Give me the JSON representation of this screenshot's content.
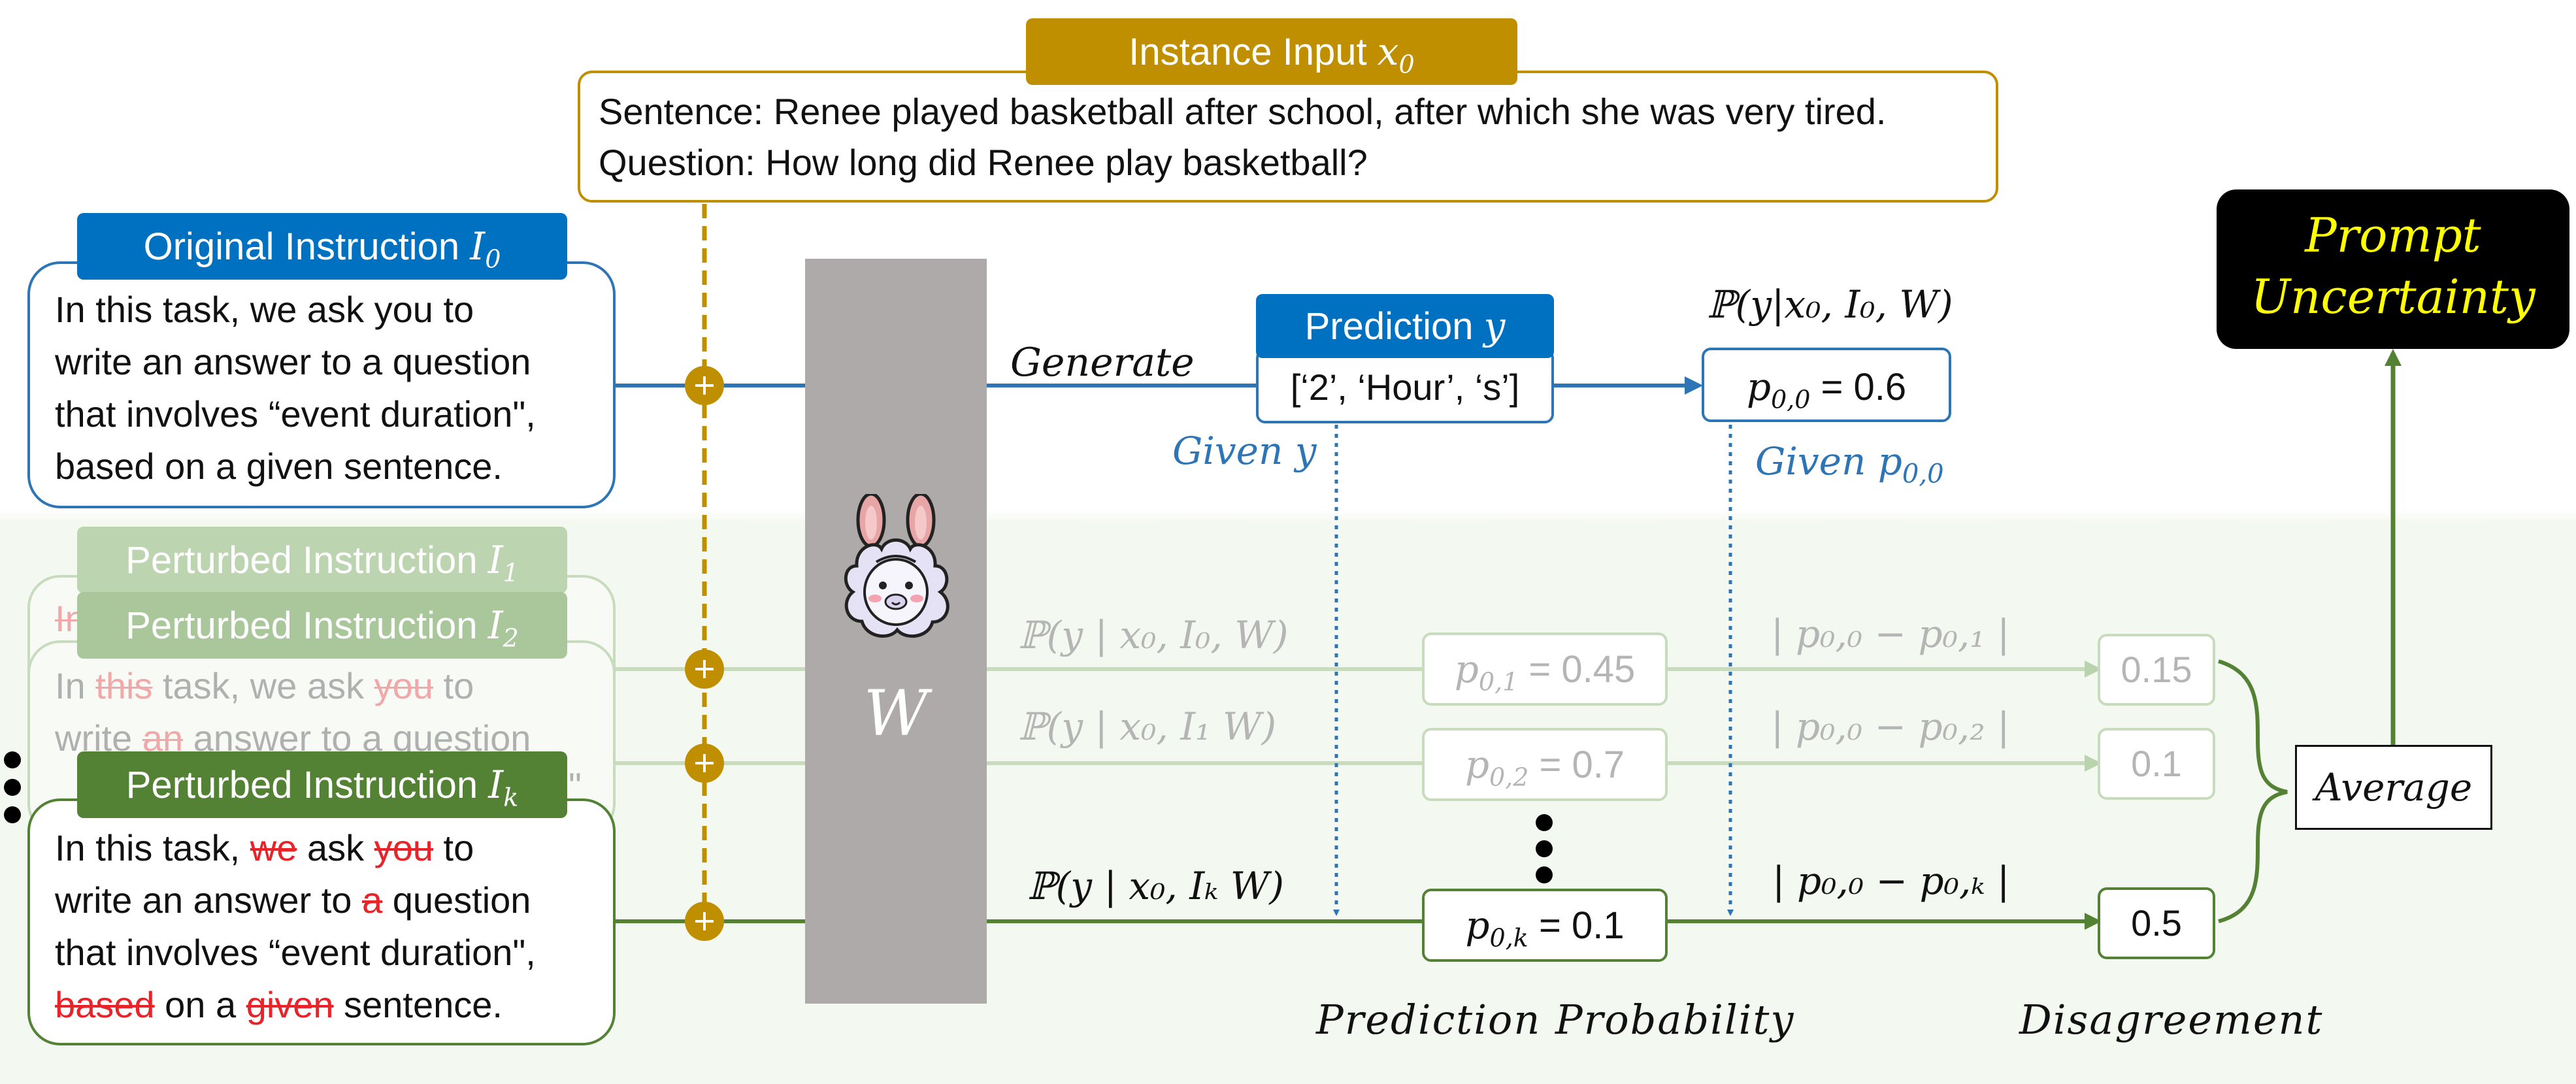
{
  "instance_input": {
    "header": "Instance Input",
    "header_var": "x",
    "header_sub": "0",
    "sentence": "Sentence: Renee played basketball after school, after which she was very tired.",
    "question": "Question: How long did Renee play basketball?"
  },
  "original_instruction": {
    "header": "Original Instruction",
    "header_var": "I",
    "header_sub": "0",
    "lines": [
      "In this task, we ask you to",
      "write an answer to a question",
      "that involves “event duration\",",
      "based on a given sentence."
    ]
  },
  "perturbed_1": {
    "header": "Perturbed Instruction",
    "header_var": "I",
    "header_sub": "1",
    "fragment": "In"
  },
  "perturbed_2": {
    "header": "Perturbed Instruction",
    "header_var": "I",
    "header_sub": "2",
    "line1": {
      "a": "In ",
      "s1": "this",
      "b": " task, we ask ",
      "s2": "you",
      "c": " to"
    },
    "line2": {
      "a": "write ",
      "s1": "an",
      "b": " answer to a question"
    },
    "line3_tail": "\""
  },
  "perturbed_k": {
    "header": "Perturbed Instruction",
    "header_var": "I",
    "header_sub": "k",
    "line1": {
      "a": "In this task, ",
      "s1": "we",
      "b": " ask ",
      "s2": "you",
      "c": " to"
    },
    "line2": {
      "a": "write an answer to ",
      "s1": "a",
      "b": " question"
    },
    "line3": "that involves “event duration\",",
    "line4": {
      "s1": "based",
      "a": " on a ",
      "s2": "given",
      "b": " sentence."
    }
  },
  "model": {
    "label": "W"
  },
  "generate_label": "Generate",
  "prediction": {
    "header": "Prediction",
    "header_var": "y",
    "value": "[‘2’, ‘Hour’, ‘s’]"
  },
  "given_y": "Given y",
  "given_p00": "Given p",
  "given_p00_sub": "0,0",
  "p00_formula": "ℙ(y|x₀, I₀, W)",
  "p00": {
    "var": "p",
    "sub": "0,0",
    "value": "= 0.6"
  },
  "rows": [
    {
      "formula": "ℙ(y | x₀, I₀, W)",
      "p_sub": "0,1",
      "p_value": "= 0.45",
      "diff": "| p₀,₀ − p₀,₁ |",
      "disagreement": "0.15"
    },
    {
      "formula": "ℙ(y | x₀, I₁ W)",
      "p_sub": "0,2",
      "p_value": "= 0.7",
      "diff": "| p₀,₀ − p₀,₂ |",
      "disagreement": "0.1"
    },
    {
      "formula": "ℙ(y | x₀, Iₖ W)",
      "p_sub": "0,k",
      "p_value": "= 0.1",
      "diff": "| p₀,₀ − p₀,ₖ |",
      "disagreement": "0.5"
    }
  ],
  "average_label": "Average",
  "prompt_uncertainty": {
    "line1": "Prompt",
    "line2": "Uncertainty"
  },
  "prediction_probability_label": "Prediction Probability",
  "disagreement_label": "Disagreement",
  "colors": {
    "gold": "#bf8f00",
    "blue": "#0070c0",
    "blue_line": "#2e75b6",
    "green": "#548235",
    "light_green": "#a9c79b",
    "gray_model": "#aeaaaa",
    "black": "#000000",
    "yellow_text": "#ffff00"
  },
  "icons": {
    "model_icon": "llama-icon",
    "combine_icon": "plus-circle-icon"
  }
}
